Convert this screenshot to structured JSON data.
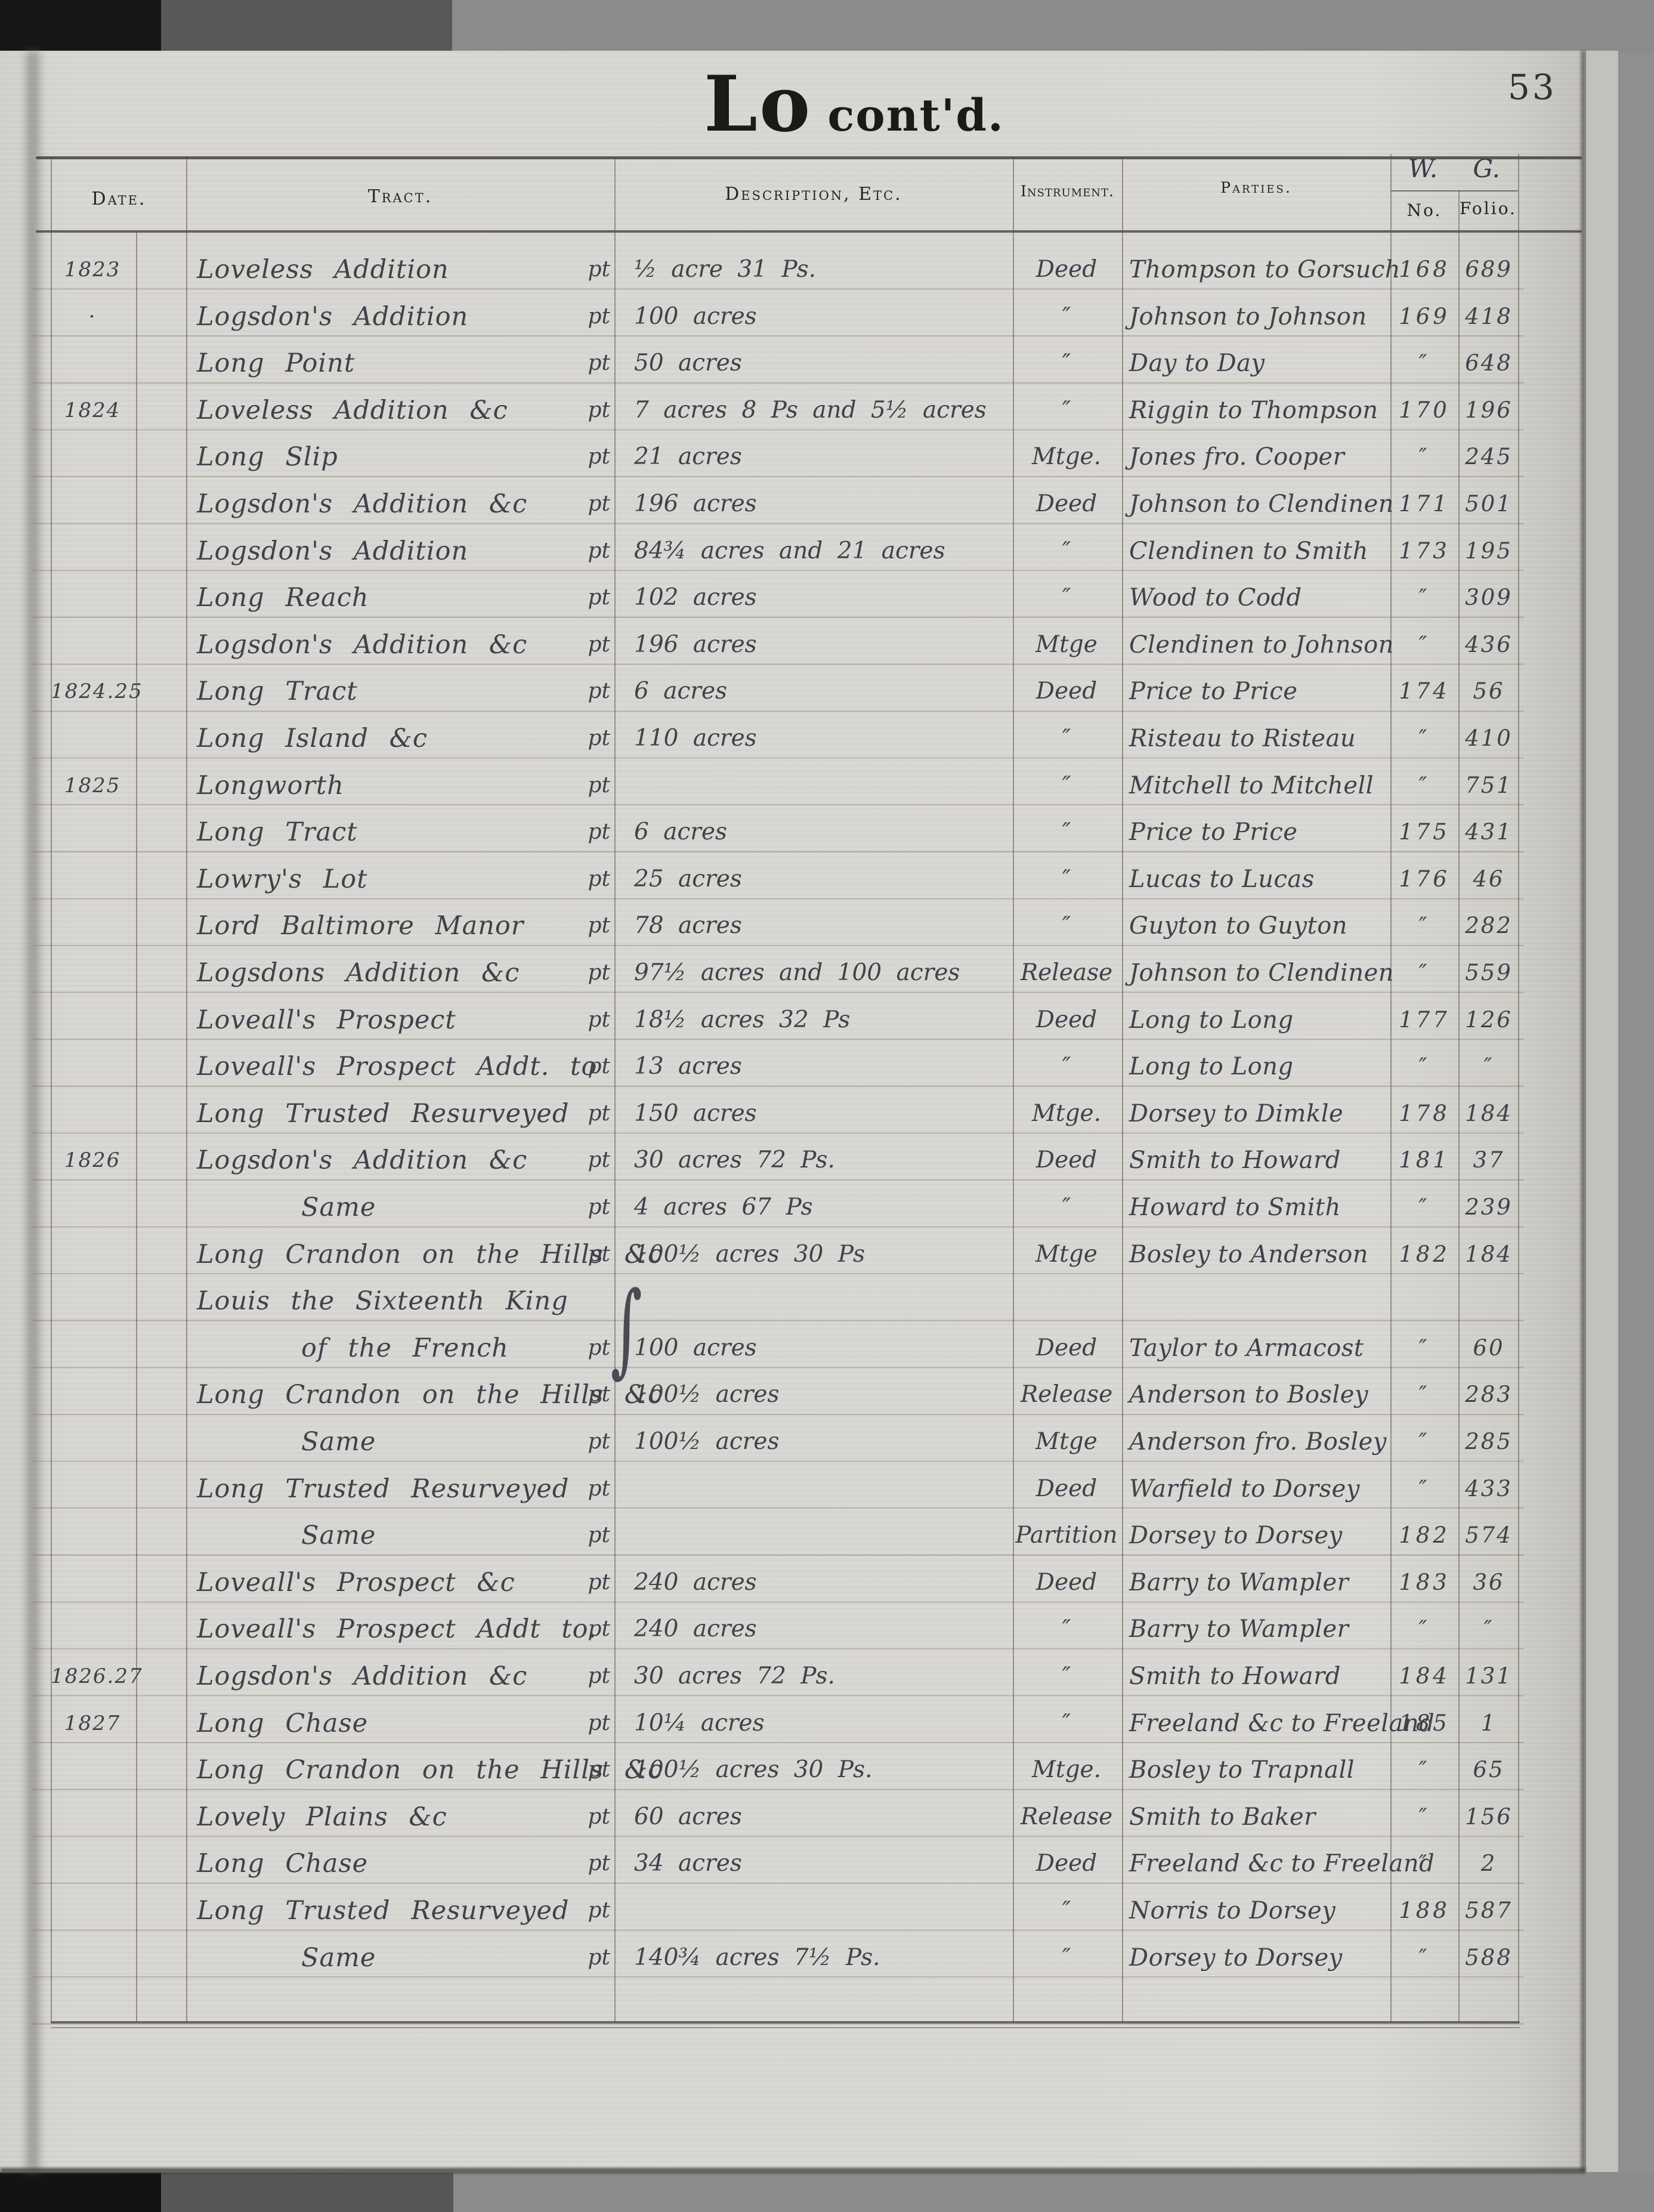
{
  "page": {
    "title_main": "Lo",
    "title_suffix": "cont'd.",
    "page_number": "53"
  },
  "colors": {
    "paper": "#d7d6d2",
    "handwriting_ink": "#41414a",
    "printed_ink": "#26241f",
    "backdrop": "#8f8f8f",
    "scanner_black": "#161616"
  },
  "table": {
    "headers": {
      "date": "Date.",
      "tract": "Tract.",
      "description": "Description, Etc.",
      "instrument": "Instrument.",
      "parties": "Parties.",
      "wg": "W.  G.",
      "no": "No.",
      "folio": "Folio."
    },
    "brace_glyph": "∫",
    "rows": [
      {
        "date": "1823",
        "tract": "Loveless Addition",
        "pt": "pt",
        "desc": "½ acre 31 Ps.",
        "instr": "Deed",
        "parties": "Thompson to Gorsuch",
        "no": "168",
        "folio": "689"
      },
      {
        "date": "·",
        "tract": "Logsdon's Addition",
        "pt": "pt",
        "desc": "100 acres",
        "instr": "″",
        "parties": "Johnson to Johnson",
        "no": "169",
        "folio": "418"
      },
      {
        "date": "",
        "tract": "Long Point",
        "pt": "pt",
        "desc": "50 acres",
        "instr": "″",
        "parties": "Day to Day",
        "no": "″",
        "folio": "648"
      },
      {
        "date": "1824",
        "tract": "Loveless Addition &c",
        "pt": "pt",
        "desc": "7 acres 8 Ps and 5½ acres",
        "instr": "″",
        "parties": "Riggin to Thompson",
        "no": "170",
        "folio": "196"
      },
      {
        "date": "",
        "tract": "Long Slip",
        "pt": "pt",
        "desc": "21 acres",
        "instr": "Mtge.",
        "parties": "Jones fro. Cooper",
        "no": "″",
        "folio": "245"
      },
      {
        "date": "",
        "tract": "Logsdon's Addition &c",
        "pt": "pt",
        "desc": "196 acres",
        "instr": "Deed",
        "parties": "Johnson to Clendinen",
        "no": "171",
        "folio": "501"
      },
      {
        "date": "",
        "tract": "Logsdon's Addition",
        "pt": "pt",
        "desc": "84¾ acres and 21 acres",
        "instr": "″",
        "parties": "Clendinen to Smith",
        "no": "173",
        "folio": "195"
      },
      {
        "date": "",
        "tract": "Long Reach",
        "pt": "pt",
        "desc": "102 acres",
        "instr": "″",
        "parties": "Wood to Codd",
        "no": "″",
        "folio": "309"
      },
      {
        "date": "",
        "tract": "Logsdon's Addition &c",
        "pt": "pt",
        "desc": "196 acres",
        "instr": "Mtge",
        "parties": "Clendinen to Johnson",
        "no": "″",
        "folio": "436"
      },
      {
        "date": "1824.25",
        "tract": "Long Tract",
        "pt": "pt",
        "desc": "6 acres",
        "instr": "Deed",
        "parties": "Price to Price",
        "no": "174",
        "folio": "56"
      },
      {
        "date": "",
        "tract": "Long Island &c",
        "pt": "pt",
        "desc": "110 acres",
        "instr": "″",
        "parties": "Risteau to Risteau",
        "no": "″",
        "folio": "410"
      },
      {
        "date": "1825",
        "tract": "Longworth",
        "pt": "pt",
        "desc": "",
        "instr": "″",
        "parties": "Mitchell to Mitchell",
        "no": "″",
        "folio": "751"
      },
      {
        "date": "",
        "tract": "Long Tract",
        "pt": "pt",
        "desc": "6 acres",
        "instr": "″",
        "parties": "Price to Price",
        "no": "175",
        "folio": "431"
      },
      {
        "date": "",
        "tract": "Lowry's Lot",
        "pt": "pt",
        "desc": "25 acres",
        "instr": "″",
        "parties": "Lucas to Lucas",
        "no": "176",
        "folio": "46"
      },
      {
        "date": "",
        "tract": "Lord Baltimore Manor",
        "pt": "pt",
        "desc": "78 acres",
        "instr": "″",
        "parties": "Guyton to Guyton",
        "no": "″",
        "folio": "282"
      },
      {
        "date": "",
        "tract": "Logsdons Addition &c",
        "pt": "pt",
        "desc": "97½ acres and 100 acres",
        "instr": "Release",
        "parties": "Johnson to Clendinen",
        "no": "″",
        "folio": "559"
      },
      {
        "date": "",
        "tract": "Loveall's Prospect",
        "pt": "pt",
        "desc": "18½ acres 32 Ps",
        "instr": "Deed",
        "parties": "Long to Long",
        "no": "177",
        "folio": "126"
      },
      {
        "date": "",
        "tract": "Loveall's Prospect Addt. to",
        "pt": "pt",
        "desc": "13 acres",
        "instr": "″",
        "parties": "Long to Long",
        "no": "″",
        "folio": "″"
      },
      {
        "date": "",
        "tract": "Long Trusted Resurveyed",
        "pt": "pt",
        "desc": "150 acres",
        "instr": "Mtge.",
        "parties": "Dorsey to Dimkle",
        "no": "178",
        "folio": "184"
      },
      {
        "date": "1826",
        "tract": "Logsdon's Addition &c",
        "pt": "pt",
        "desc": "30 acres 72 Ps.",
        "instr": "Deed",
        "parties": "Smith to Howard",
        "no": "181",
        "folio": "37"
      },
      {
        "date": "",
        "tract": "Same",
        "indent": true,
        "pt": "pt",
        "desc": "4 acres 67 Ps",
        "instr": "″",
        "parties": "Howard to Smith",
        "no": "″",
        "folio": "239"
      },
      {
        "date": "",
        "tract": "Long Crandon on the Hills &c",
        "pt": "pt",
        "desc": "100½ acres 30 Ps",
        "instr": "Mtge",
        "parties": "Bosley to Anderson",
        "no": "182",
        "folio": "184"
      },
      {
        "date": "",
        "tract": "Louis the Sixteenth King",
        "pt": "",
        "desc": "",
        "instr": "",
        "parties": "",
        "no": "",
        "folio": "",
        "brace": true
      },
      {
        "date": "",
        "tract": "of the French",
        "indent": true,
        "pt": "pt",
        "desc": "100 acres",
        "instr": "Deed",
        "parties": "Taylor to Armacost",
        "no": "″",
        "folio": "60"
      },
      {
        "date": "",
        "tract": "Long Crandon on the Hills &c",
        "pt": "pt",
        "desc": "100½ acres",
        "instr": "Release",
        "parties": "Anderson to Bosley",
        "no": "″",
        "folio": "283"
      },
      {
        "date": "",
        "tract": "Same",
        "indent": true,
        "pt": "pt",
        "desc": "100½ acres",
        "instr": "Mtge",
        "parties": "Anderson fro. Bosley",
        "no": "″",
        "folio": "285"
      },
      {
        "date": "",
        "tract": "Long Trusted Resurveyed",
        "pt": "pt",
        "desc": "",
        "instr": "Deed",
        "parties": "Warfield to Dorsey",
        "no": "″",
        "folio": "433"
      },
      {
        "date": "",
        "tract": "Same",
        "indent": true,
        "pt": "pt",
        "desc": "",
        "instr": "Partition",
        "parties": "Dorsey to Dorsey",
        "no": "182",
        "folio": "574"
      },
      {
        "date": "",
        "tract": "Loveall's Prospect &c",
        "pt": "pt",
        "desc": "240 acres",
        "instr": "Deed",
        "parties": "Barry to Wampler",
        "no": "183",
        "folio": "36"
      },
      {
        "date": "",
        "tract": "Loveall's Prospect Addt to.",
        "pt": "pt",
        "desc": "240 acres",
        "instr": "″",
        "parties": "Barry to Wampler",
        "no": "″",
        "folio": "″"
      },
      {
        "date": "1826.27",
        "tract": "Logsdon's Addition &c",
        "pt": "pt",
        "desc": "30 acres 72 Ps.",
        "instr": "″",
        "parties": "Smith to Howard",
        "no": "184",
        "folio": "131"
      },
      {
        "date": "1827",
        "tract": "Long Chase",
        "pt": "pt",
        "desc": "10¼ acres",
        "instr": "″",
        "parties": "Freeland &c to Freeland",
        "no": "185",
        "folio": "1"
      },
      {
        "date": "",
        "tract": "Long Crandon on the Hills &c",
        "pt": "pt",
        "desc": "100½ acres 30 Ps.",
        "instr": "Mtge.",
        "parties": "Bosley to Trapnall",
        "no": "″",
        "folio": "65"
      },
      {
        "date": "",
        "tract": "Lovely Plains &c",
        "pt": "pt",
        "desc": "60 acres",
        "instr": "Release",
        "parties": "Smith to Baker",
        "no": "″",
        "folio": "156"
      },
      {
        "date": "",
        "tract": "Long Chase",
        "pt": "pt",
        "desc": "34 acres",
        "instr": "Deed",
        "parties": "Freeland &c to Freeland",
        "no": "″",
        "folio": "2"
      },
      {
        "date": "",
        "tract": "Long Trusted Resurveyed",
        "pt": "pt",
        "desc": "",
        "instr": "″",
        "parties": "Norris to Dorsey",
        "no": "188",
        "folio": "587"
      },
      {
        "date": "",
        "tract": "Same",
        "indent": true,
        "pt": "pt",
        "desc": "140¾ acres 7½ Ps.",
        "instr": "″",
        "parties": "Dorsey to Dorsey",
        "no": "″",
        "folio": "588"
      }
    ]
  }
}
